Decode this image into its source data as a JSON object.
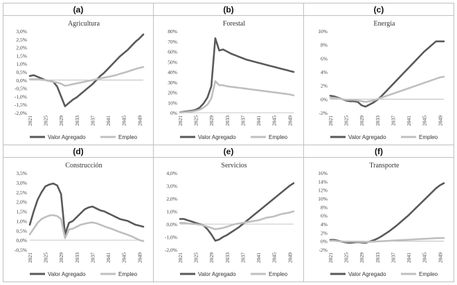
{
  "panels": [
    {
      "letter": "(a)",
      "chart_data": {
        "type": "line",
        "title": "Agricultura",
        "x": [
          2021,
          2022,
          2023,
          2024,
          2025,
          2026,
          2027,
          2028,
          2029,
          2030,
          2031,
          2032,
          2033,
          2034,
          2035,
          2036,
          2037,
          2038,
          2039,
          2040,
          2041,
          2042,
          2043,
          2044,
          2045,
          2046,
          2047,
          2048,
          2049,
          2050
        ],
        "xticks": [
          2021,
          2025,
          2029,
          2033,
          2037,
          2041,
          2045,
          2049
        ],
        "ylim": [
          -2.0,
          3.0
        ],
        "yticks": [
          -2.0,
          -1.5,
          -1.0,
          -0.5,
          0.0,
          0.5,
          1.0,
          1.5,
          2.0,
          2.5,
          3.0
        ],
        "ytick_labels": [
          "-2,0%",
          "-1,5%",
          "-1,0%",
          "-0,5%",
          "0,0%",
          "0,5%",
          "1,0%",
          "1,5%",
          "2,0%",
          "2,5%",
          "3,0%"
        ],
        "series": [
          {
            "name": "Valor Agregado",
            "color": "#595959",
            "values": [
              0.25,
              0.3,
              0.2,
              0.1,
              0.0,
              -0.05,
              -0.1,
              -0.4,
              -1.0,
              -1.6,
              -1.4,
              -1.2,
              -1.05,
              -0.85,
              -0.65,
              -0.45,
              -0.25,
              0.0,
              0.25,
              0.45,
              0.7,
              0.95,
              1.2,
              1.45,
              1.65,
              1.85,
              2.1,
              2.35,
              2.55,
              2.8
            ]
          },
          {
            "name": "Empleo",
            "color": "#bfbfbf",
            "values": [
              0.05,
              0.05,
              0.05,
              0.02,
              0.0,
              -0.05,
              -0.1,
              -0.15,
              -0.22,
              -0.35,
              -0.3,
              -0.25,
              -0.2,
              -0.15,
              -0.1,
              -0.05,
              0.0,
              0.05,
              0.1,
              0.15,
              0.2,
              0.25,
              0.3,
              0.38,
              0.45,
              0.52,
              0.6,
              0.68,
              0.75,
              0.8
            ]
          }
        ],
        "legend": "bottom"
      }
    },
    {
      "letter": "(b)",
      "chart_data": {
        "type": "line",
        "title": "Forestal",
        "x": [
          2021,
          2022,
          2023,
          2024,
          2025,
          2026,
          2027,
          2028,
          2029,
          2030,
          2031,
          2032,
          2033,
          2034,
          2035,
          2036,
          2037,
          2038,
          2039,
          2040,
          2041,
          2042,
          2043,
          2044,
          2045,
          2046,
          2047,
          2048,
          2049,
          2050
        ],
        "xticks": [
          2021,
          2025,
          2029,
          2033,
          2037,
          2041,
          2045,
          2049
        ],
        "ylim": [
          0,
          80
        ],
        "yticks": [
          0,
          10,
          20,
          30,
          40,
          50,
          60,
          70,
          80
        ],
        "ytick_labels": [
          "0%",
          "10%",
          "20%",
          "30%",
          "40%",
          "50%",
          "60%",
          "70%",
          "80%"
        ],
        "series": [
          {
            "name": "Valor Agregado",
            "color": "#595959",
            "values": [
              0.5,
              1,
              1.5,
              2,
              3,
              5,
              9,
              15,
              26,
              73,
              61,
              62,
              60,
              58,
              56.5,
              55,
              53.5,
              52,
              51,
              50,
              49,
              48,
              47,
              46,
              45,
              44,
              43,
              42,
              41,
              40
            ]
          },
          {
            "name": "Empleo",
            "color": "#bfbfbf",
            "values": [
              0.2,
              0.5,
              0.8,
              1.2,
              2,
              3,
              5,
              8,
              14,
              31,
              27,
              27,
              26,
              25.5,
              25,
              24.5,
              24,
              23.5,
              23,
              22.5,
              22,
              21.5,
              21,
              20.5,
              20,
              19.5,
              19,
              18.5,
              18,
              17
            ]
          }
        ],
        "legend": "bottom"
      }
    },
    {
      "letter": "(c)",
      "chart_data": {
        "type": "line",
        "title": "Energía",
        "x": [
          2021,
          2022,
          2023,
          2024,
          2025,
          2026,
          2027,
          2028,
          2029,
          2030,
          2031,
          2032,
          2033,
          2034,
          2035,
          2036,
          2037,
          2038,
          2039,
          2040,
          2041,
          2042,
          2043,
          2044,
          2045,
          2046,
          2047,
          2048,
          2049,
          2050
        ],
        "xticks": [
          2021,
          2025,
          2029,
          2033,
          2037,
          2041,
          2045,
          2049
        ],
        "ylim": [
          -2,
          10
        ],
        "yticks": [
          -2,
          0,
          2,
          4,
          6,
          8,
          10
        ],
        "ytick_labels": [
          "-2%",
          "0%",
          "2%",
          "4%",
          "6%",
          "8%",
          "10%"
        ],
        "series": [
          {
            "name": "Valor Agregado",
            "color": "#595959",
            "values": [
              0.5,
              0.4,
              0.2,
              0,
              -0.2,
              -0.3,
              -0.3,
              -0.4,
              -0.9,
              -1.1,
              -0.8,
              -0.5,
              -0.1,
              0.4,
              1.0,
              1.6,
              2.2,
              2.8,
              3.4,
              4.0,
              4.6,
              5.2,
              5.8,
              6.4,
              7.0,
              7.5,
              8.0,
              8.5,
              8.5,
              8.5
            ]
          },
          {
            "name": "Empleo",
            "color": "#bfbfbf",
            "values": [
              0.2,
              0.2,
              0.1,
              0,
              -0.1,
              -0.1,
              -0.1,
              -0.2,
              -0.3,
              -0.4,
              -0.3,
              -0.2,
              0,
              0.2,
              0.4,
              0.6,
              0.8,
              1.0,
              1.2,
              1.4,
              1.6,
              1.8,
              2.0,
              2.2,
              2.4,
              2.6,
              2.8,
              3.0,
              3.2,
              3.3
            ]
          }
        ],
        "legend": "bottom"
      }
    },
    {
      "letter": "(d)",
      "chart_data": {
        "type": "line",
        "title": "Construcción",
        "x": [
          2021,
          2022,
          2023,
          2024,
          2025,
          2026,
          2027,
          2028,
          2029,
          2030,
          2031,
          2032,
          2033,
          2034,
          2035,
          2036,
          2037,
          2038,
          2039,
          2040,
          2041,
          2042,
          2043,
          2044,
          2045,
          2046,
          2047,
          2048,
          2049,
          2050
        ],
        "xticks": [
          2021,
          2025,
          2029,
          2033,
          2037,
          2041,
          2045,
          2049
        ],
        "ylim": [
          -0.5,
          3.5
        ],
        "yticks": [
          -0.5,
          0,
          0.5,
          1,
          1.5,
          2,
          2.5,
          3,
          3.5
        ],
        "ytick_labels": [
          "-0,5%",
          "0,0%",
          "0,5%",
          "1,0%",
          "1,5%",
          "2,0%",
          "2,5%",
          "3,0%",
          "3,5%"
        ],
        "series": [
          {
            "name": "Valor Agregado",
            "color": "#595959",
            "values": [
              0.8,
              1.5,
              2.1,
              2.5,
              2.8,
              2.9,
              2.95,
              2.85,
              2.4,
              0.3,
              0.9,
              1.0,
              1.2,
              1.4,
              1.6,
              1.7,
              1.75,
              1.65,
              1.55,
              1.5,
              1.4,
              1.3,
              1.2,
              1.1,
              1.05,
              1.0,
              0.9,
              0.8,
              0.75,
              0.7
            ]
          },
          {
            "name": "Empleo",
            "color": "#bfbfbf",
            "values": [
              0.3,
              0.6,
              0.9,
              1.1,
              1.2,
              1.28,
              1.3,
              1.25,
              1.1,
              0.1,
              0.55,
              0.6,
              0.7,
              0.8,
              0.85,
              0.9,
              0.92,
              0.88,
              0.8,
              0.72,
              0.65,
              0.58,
              0.5,
              0.42,
              0.35,
              0.28,
              0.2,
              0.1,
              0.0,
              -0.05
            ]
          }
        ],
        "legend": "bottom"
      }
    },
    {
      "letter": "(e)",
      "chart_data": {
        "type": "line",
        "title": "Servicios",
        "x": [
          2021,
          2022,
          2023,
          2024,
          2025,
          2026,
          2027,
          2028,
          2029,
          2030,
          2031,
          2032,
          2033,
          2034,
          2035,
          2036,
          2037,
          2038,
          2039,
          2040,
          2041,
          2042,
          2043,
          2044,
          2045,
          2046,
          2047,
          2048,
          2049,
          2050
        ],
        "xticks": [
          2021,
          2025,
          2029,
          2033,
          2037,
          2041,
          2045,
          2049
        ],
        "ylim": [
          -2.0,
          4.0
        ],
        "yticks": [
          -2,
          -1,
          0,
          1,
          2,
          3,
          4
        ],
        "ytick_labels": [
          "-2,0%",
          "-1,0%",
          "0,0%",
          "1,0%",
          "2,0%",
          "3,0%",
          "4,0%"
        ],
        "series": [
          {
            "name": "Valor Agregado",
            "color": "#595959",
            "values": [
              0.4,
              0.4,
              0.3,
              0.2,
              0.1,
              0,
              -0.1,
              -0.4,
              -0.8,
              -1.3,
              -1.2,
              -1.0,
              -0.85,
              -0.65,
              -0.45,
              -0.25,
              0,
              0.25,
              0.5,
              0.75,
              1.0,
              1.25,
              1.5,
              1.75,
              2.0,
              2.25,
              2.5,
              2.75,
              3.0,
              3.2
            ]
          },
          {
            "name": "Empleo",
            "color": "#bfbfbf",
            "values": [
              0.1,
              0.1,
              0.05,
              0.02,
              0,
              -0.05,
              -0.1,
              -0.2,
              -0.3,
              -0.4,
              -0.35,
              -0.3,
              -0.2,
              -0.1,
              0,
              0.05,
              0.1,
              0.15,
              0.2,
              0.25,
              0.3,
              0.4,
              0.5,
              0.55,
              0.6,
              0.7,
              0.8,
              0.85,
              0.9,
              1.0
            ]
          }
        ],
        "legend": "bottom"
      }
    },
    {
      "letter": "(f)",
      "chart_data": {
        "type": "line",
        "title": "Transporte",
        "x": [
          2021,
          2022,
          2023,
          2024,
          2025,
          2026,
          2027,
          2028,
          2029,
          2030,
          2031,
          2032,
          2033,
          2034,
          2035,
          2036,
          2037,
          2038,
          2039,
          2040,
          2041,
          2042,
          2043,
          2044,
          2045,
          2046,
          2047,
          2048,
          2049,
          2050
        ],
        "xticks": [
          2021,
          2025,
          2029,
          2033,
          2037,
          2041,
          2045,
          2049
        ],
        "ylim": [
          -2,
          16
        ],
        "yticks": [
          -2,
          0,
          2,
          4,
          6,
          8,
          10,
          12,
          14,
          16
        ],
        "ytick_labels": [
          "-2%",
          "0%",
          "2%",
          "4%",
          "6%",
          "8%",
          "10%",
          "12%",
          "14%",
          "16%"
        ],
        "series": [
          {
            "name": "Valor Agregado",
            "color": "#595959",
            "values": [
              0.3,
              0.3,
              0.1,
              -0.1,
              -0.3,
              -0.4,
              -0.3,
              -0.2,
              -0.3,
              -0.4,
              -0.1,
              0.2,
              0.6,
              1.1,
              1.7,
              2.3,
              3.0,
              3.7,
              4.5,
              5.3,
              6.1,
              7.0,
              7.9,
              8.8,
              9.7,
              10.6,
              11.5,
              12.4,
              13.1,
              13.6
            ]
          },
          {
            "name": "Empleo",
            "color": "#bfbfbf",
            "values": [
              0.1,
              0.1,
              0,
              -0.05,
              -0.1,
              -0.1,
              -0.1,
              -0.1,
              -0.15,
              -0.2,
              -0.15,
              -0.1,
              -0.05,
              0,
              0.05,
              0.1,
              0.15,
              0.2,
              0.25,
              0.3,
              0.35,
              0.4,
              0.45,
              0.5,
              0.55,
              0.6,
              0.65,
              0.7,
              0.72,
              0.75
            ]
          }
        ],
        "legend": "bottom"
      }
    }
  ]
}
